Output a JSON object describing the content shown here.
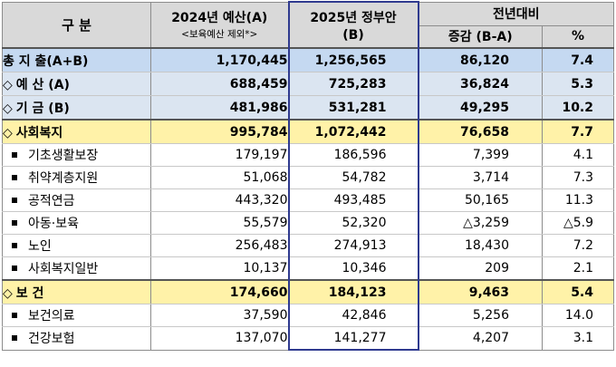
{
  "header": {
    "category": "구  분",
    "col_2024": "2024년 예산(A)",
    "col_2024_note": "<보육예산 제외*>",
    "col_2025": "2025년 정부안",
    "col_2025_sub": "(B)",
    "col_group": "전년대비",
    "col_diff": "증감 (B-A)",
    "col_pct": "%"
  },
  "rows": [
    {
      "kind": "total",
      "marker": "",
      "label": "총 지 출(A+B)",
      "a": "1,170,445",
      "b": "1,256,565",
      "diff": "86,120",
      "pct": "7.4"
    },
    {
      "kind": "sub",
      "marker": "◇",
      "label": "예  산 (A)",
      "a": "688,459",
      "b": "725,283",
      "diff": "36,824",
      "pct": "5.3"
    },
    {
      "kind": "sub",
      "marker": "◇",
      "label": "기  금 (B)",
      "a": "481,986",
      "b": "531,281",
      "diff": "49,295",
      "pct": "10.2"
    },
    {
      "kind": "sect",
      "marker": "◇",
      "label": "사회복지",
      "a": "995,784",
      "b": "1,072,442",
      "diff": "76,658",
      "pct": "7.7"
    },
    {
      "kind": "item",
      "marker": "■",
      "label": "기초생활보장",
      "a": "179,197",
      "b": "186,596",
      "diff": "7,399",
      "pct": "4.1"
    },
    {
      "kind": "item",
      "marker": "■",
      "label": "취약계층지원",
      "a": "51,068",
      "b": "54,782",
      "diff": "3,714",
      "pct": "7.3"
    },
    {
      "kind": "item",
      "marker": "■",
      "label": "공적연금",
      "a": "443,320",
      "b": "493,485",
      "diff": "50,165",
      "pct": "11.3"
    },
    {
      "kind": "item",
      "marker": "■",
      "label": "아동·보육",
      "a": "55,579",
      "b": "52,320",
      "diff": "△3,259",
      "pct": "△5.9"
    },
    {
      "kind": "item",
      "marker": "■",
      "label": "노인",
      "a": "256,483",
      "b": "274,913",
      "diff": "18,430",
      "pct": "7.2"
    },
    {
      "kind": "item",
      "marker": "■",
      "label": "사회복지일반",
      "a": "10,137",
      "b": "10,346",
      "diff": "209",
      "pct": "2.1"
    },
    {
      "kind": "sect",
      "marker": "◇",
      "label": "보  건",
      "a": "174,660",
      "b": "184,123",
      "diff": "9,463",
      "pct": "5.4"
    },
    {
      "kind": "item",
      "marker": "■",
      "label": "보건의료",
      "a": "37,590",
      "b": "42,846",
      "diff": "5,256",
      "pct": "14.0"
    },
    {
      "kind": "item",
      "marker": "■",
      "label": "건강보험",
      "a": "137,070",
      "b": "141,277",
      "diff": "4,207",
      "pct": "3.1"
    }
  ],
  "colors": {
    "header_bg": "#d9d9d9",
    "total_bg": "#c5d9f1",
    "sub_bg": "#dbe5f1",
    "section_bg": "#fff2a8",
    "highlight_border": "#2f3a8f"
  }
}
